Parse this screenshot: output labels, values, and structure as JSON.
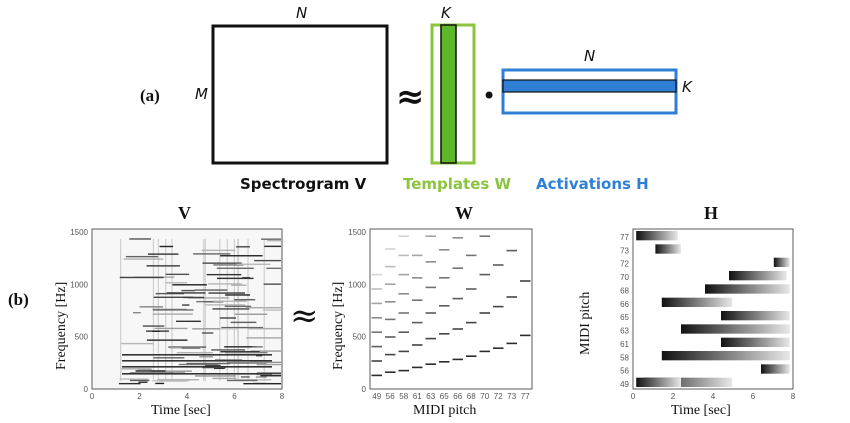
{
  "panel_a": {
    "label": "(a)",
    "dim_n_top": "N",
    "dim_m_left": "M",
    "approx_symbol": "≈",
    "dim_k_templates": "K",
    "dot_symbol": "•",
    "dim_n_activations": "N",
    "dim_k_activations": "K",
    "caption_v": "Spectrogram V",
    "caption_w": "Templates W",
    "caption_h": "Activations H"
  },
  "panel_b": {
    "label": "(b)",
    "approx_symbol": "≈",
    "v": {
      "title": "V",
      "xlabel": "Time [sec]",
      "ylabel": "Frequency [Hz]",
      "xticks": [
        "0",
        "2",
        "4",
        "6",
        "8"
      ],
      "yticks": [
        "0",
        "500",
        "1000",
        "1500"
      ]
    },
    "w": {
      "title": "W",
      "xlabel": "MIDI pitch",
      "ylabel": "Frequency [Hz]",
      "xticks": [
        "49",
        "56",
        "58",
        "61",
        "63",
        "65",
        "66",
        "68",
        "70",
        "72",
        "73",
        "77"
      ],
      "yticks": [
        "0",
        "500",
        "1000",
        "1500"
      ]
    },
    "h": {
      "title": "H",
      "xlabel": "Time [sec]",
      "ylabel": "MIDI pitch",
      "xticks": [
        "0",
        "2",
        "4",
        "6",
        "8"
      ],
      "yticks": [
        "77",
        "73",
        "72",
        "70",
        "68",
        "66",
        "65",
        "63",
        "61",
        "58",
        "56",
        "49"
      ]
    }
  },
  "colors": {
    "spectrogram_box": "#111111",
    "templates": "#8bc53f",
    "activations": "#2f7fd6"
  }
}
